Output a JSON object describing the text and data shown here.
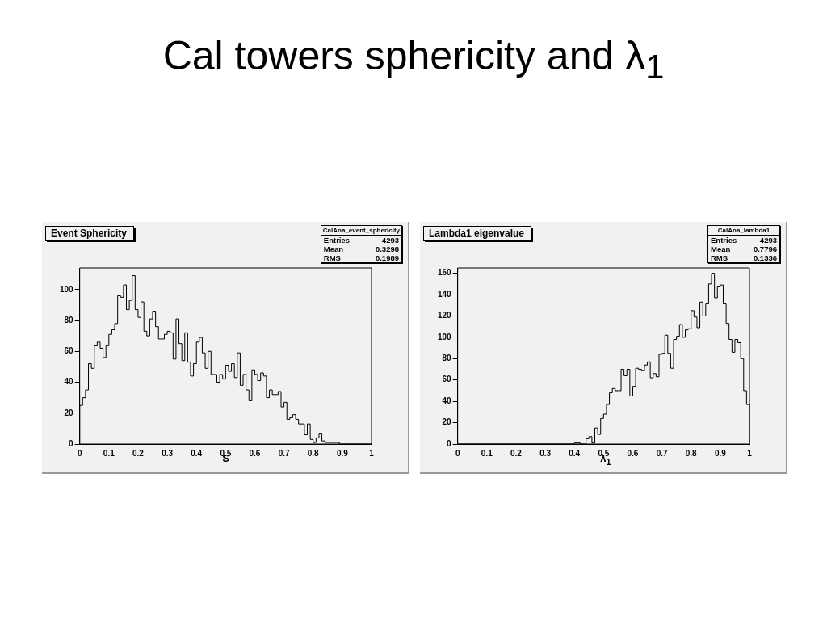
{
  "chart_data": [
    {
      "type": "other",
      "title": "Cal towers sphericity and λ$_{1}$"
    },
    {
      "type": "histogram",
      "title": "Event Sphericity",
      "xlabel": "S",
      "color": "#000000",
      "bins": [
        0,
        0.01,
        0.02,
        0.03,
        0.04,
        0.05,
        0.06,
        0.07,
        0.08,
        0.09,
        0.1,
        0.11,
        0.12,
        0.13,
        0.14,
        0.15,
        0.16,
        0.17,
        0.18,
        0.19,
        0.2,
        0.21,
        0.22,
        0.23,
        0.24,
        0.25,
        0.26,
        0.27,
        0.28,
        0.29,
        0.3,
        0.31,
        0.32,
        0.33,
        0.34,
        0.35,
        0.36,
        0.37,
        0.38,
        0.39,
        0.4,
        0.41,
        0.42,
        0.43,
        0.44,
        0.45,
        0.46,
        0.47,
        0.48,
        0.49,
        0.5,
        0.51,
        0.52,
        0.53,
        0.54,
        0.55,
        0.56,
        0.57,
        0.58,
        0.59,
        0.6,
        0.61,
        0.62,
        0.63,
        0.64,
        0.65,
        0.66,
        0.67,
        0.68,
        0.69,
        0.7,
        0.71,
        0.72,
        0.73,
        0.74,
        0.75,
        0.76,
        0.77,
        0.78,
        0.79,
        0.8,
        0.81,
        0.82,
        0.83,
        0.84,
        0.85,
        0.86,
        0.87,
        0.88,
        0.89,
        0.9,
        0.91,
        0.92,
        0.93,
        0.94,
        0.95,
        0.96,
        0.97,
        0.98,
        0.99,
        1
      ],
      "values": [
        25,
        30,
        35,
        52,
        49,
        64,
        66,
        62,
        56,
        64,
        71,
        74,
        78,
        96,
        95,
        103,
        87,
        93,
        109,
        87,
        82,
        92,
        73,
        70,
        81,
        86,
        76,
        68,
        68,
        71,
        73,
        72,
        55,
        81,
        65,
        54,
        72,
        53,
        44,
        52,
        66,
        69,
        59,
        49,
        60,
        45,
        45,
        40,
        45,
        42,
        51,
        47,
        52,
        43,
        59,
        38,
        45,
        35,
        28,
        48,
        45,
        41,
        46,
        44,
        30,
        35,
        32,
        32,
        34,
        24,
        27,
        16,
        17,
        19,
        16,
        13,
        13,
        6,
        13,
        3,
        1,
        4,
        7,
        2,
        1,
        1,
        1,
        1,
        1,
        0,
        0,
        0,
        0,
        0,
        0,
        0,
        0,
        0,
        0,
        0
      ],
      "xlim": [
        0,
        1
      ],
      "xticks": [
        0,
        0.1,
        0.2,
        0.3,
        0.4,
        0.5,
        0.6,
        0.7,
        0.8,
        0.9,
        1
      ],
      "ylim": [
        0,
        114
      ],
      "yticks": [
        0,
        20,
        40,
        60,
        80,
        100
      ],
      "annotations": [
        "CalAna_event_sphericity",
        "Entries 4293",
        "Mean 0.3298",
        "RMS 0.1989"
      ]
    },
    {
      "type": "histogram",
      "title": "Lambda1 eigenvalue",
      "xlabel": "λ$_{1}$",
      "color": "#000000",
      "bins": [
        0,
        0.01,
        0.02,
        0.03,
        0.04,
        0.05,
        0.06,
        0.07,
        0.08,
        0.09,
        0.1,
        0.11,
        0.12,
        0.13,
        0.14,
        0.15,
        0.16,
        0.17,
        0.18,
        0.19,
        0.2,
        0.21,
        0.22,
        0.23,
        0.24,
        0.25,
        0.26,
        0.27,
        0.28,
        0.29,
        0.3,
        0.31,
        0.32,
        0.33,
        0.34,
        0.35,
        0.36,
        0.37,
        0.38,
        0.39,
        0.4,
        0.41,
        0.42,
        0.43,
        0.44,
        0.45,
        0.46,
        0.47,
        0.48,
        0.49,
        0.5,
        0.51,
        0.52,
        0.53,
        0.54,
        0.55,
        0.56,
        0.57,
        0.58,
        0.59,
        0.6,
        0.61,
        0.62,
        0.63,
        0.64,
        0.65,
        0.66,
        0.67,
        0.68,
        0.69,
        0.7,
        0.71,
        0.72,
        0.73,
        0.74,
        0.75,
        0.76,
        0.77,
        0.78,
        0.79,
        0.8,
        0.81,
        0.82,
        0.83,
        0.84,
        0.85,
        0.86,
        0.87,
        0.88,
        0.89,
        0.9,
        0.91,
        0.92,
        0.93,
        0.94,
        0.95,
        0.96,
        0.97,
        0.98,
        0.99,
        1
      ],
      "values": [
        0,
        0,
        0,
        0,
        0,
        0,
        0,
        0,
        0,
        0,
        0,
        0,
        0,
        0,
        0,
        0,
        0,
        0,
        0,
        0,
        0,
        0,
        0,
        0,
        0,
        0,
        0,
        0,
        0,
        0,
        0,
        0,
        0,
        0,
        0,
        0,
        0,
        0,
        0,
        0,
        1,
        1,
        0,
        0,
        5,
        7,
        1,
        15,
        9,
        24,
        28,
        37,
        48,
        52,
        50,
        50,
        70,
        64,
        70,
        45,
        54,
        71,
        70,
        69,
        74,
        77,
        62,
        66,
        63,
        84,
        85,
        102,
        85,
        71,
        98,
        101,
        112,
        100,
        107,
        108,
        125,
        119,
        109,
        133,
        120,
        132,
        150,
        160,
        137,
        148,
        149,
        132,
        113,
        98,
        86,
        98,
        95,
        80,
        50,
        37
      ],
      "xlim": [
        0,
        1
      ],
      "xticks": [
        0,
        0.1,
        0.2,
        0.3,
        0.4,
        0.5,
        0.6,
        0.7,
        0.8,
        0.9,
        1
      ],
      "ylim": [
        0,
        165
      ],
      "yticks": [
        0,
        20,
        40,
        60,
        80,
        100,
        120,
        140,
        160
      ],
      "annotations": [
        "CalAna_lambda1",
        "Entries 4293",
        "Mean 0.7796",
        "RMS 0.1336"
      ]
    }
  ]
}
